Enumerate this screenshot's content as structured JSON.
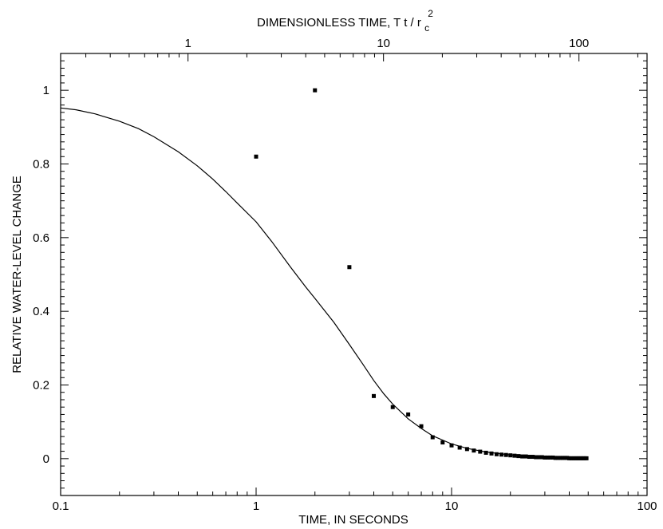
{
  "chart_data": {
    "type": "scatter",
    "xlabel": "TIME, IN SECONDS",
    "ylabel": "RELATIVE WATER-LEVEL CHANGE",
    "x2label": {
      "prefix": "DIMENSIONLESS TIME, T t / r",
      "sub": "c",
      "sup": "2"
    },
    "xscale": "log",
    "xlim": [
      0.1,
      100
    ],
    "ylim": [
      -0.1,
      1.1
    ],
    "x_ticks": [
      {
        "value": 0.1,
        "label": "0.1"
      },
      {
        "value": 1,
        "label": "1"
      },
      {
        "value": 10,
        "label": "10"
      },
      {
        "value": 100,
        "label": "100"
      }
    ],
    "y_ticks": [
      {
        "value": 0,
        "label": "0"
      },
      {
        "value": 0.2,
        "label": "0.2"
      },
      {
        "value": 0.4,
        "label": "0.4"
      },
      {
        "value": 0.6,
        "label": "0.6"
      },
      {
        "value": 0.8,
        "label": "0.8"
      },
      {
        "value": 1,
        "label": "1"
      }
    ],
    "x2_ticks": [
      {
        "value": 1,
        "label": "1"
      },
      {
        "value": 10,
        "label": "10"
      },
      {
        "value": 100,
        "label": "100"
      }
    ],
    "x2_per_x": 2.23,
    "grid": false,
    "series": [
      {
        "kind": "points",
        "marker": "square",
        "x": [
          1,
          2,
          3,
          4,
          5,
          6,
          7,
          8,
          9,
          10,
          11,
          12,
          13,
          14,
          15,
          16,
          17,
          18,
          19,
          20,
          21,
          22,
          23,
          24,
          25,
          26,
          27,
          28,
          29,
          30,
          31,
          32,
          33,
          34,
          35,
          36,
          37,
          38,
          39,
          40,
          41,
          42,
          43,
          44,
          45,
          46,
          47,
          48,
          49
        ],
        "y": [
          0.82,
          1.0,
          0.52,
          0.17,
          0.14,
          0.12,
          0.088,
          0.058,
          0.044,
          0.036,
          0.03,
          0.026,
          0.022,
          0.019,
          0.016,
          0.014,
          0.012,
          0.011,
          0.01,
          0.009,
          0.008,
          0.007,
          0.006,
          0.006,
          0.005,
          0.005,
          0.004,
          0.004,
          0.004,
          0.003,
          0.003,
          0.003,
          0.003,
          0.002,
          0.002,
          0.002,
          0.002,
          0.002,
          0.002,
          0.001,
          0.001,
          0.001,
          0.001,
          0.001,
          0.001,
          0.001,
          0.001,
          0.001,
          0.001
        ]
      },
      {
        "kind": "line",
        "x": [
          0.1,
          0.12,
          0.15,
          0.2,
          0.25,
          0.3,
          0.4,
          0.5,
          0.6,
          0.7,
          0.8,
          1.0,
          1.2,
          1.5,
          1.8,
          2.0,
          2.5,
          3.0,
          3.5,
          4.0,
          4.5,
          5.0,
          6.0,
          7.0,
          8.0,
          10.0,
          12.0,
          15.0,
          20.0,
          25.0,
          30.0,
          40.0,
          50.0
        ],
        "y": [
          0.952,
          0.947,
          0.936,
          0.916,
          0.896,
          0.874,
          0.833,
          0.795,
          0.759,
          0.725,
          0.694,
          0.643,
          0.59,
          0.52,
          0.465,
          0.435,
          0.37,
          0.31,
          0.258,
          0.212,
          0.176,
          0.148,
          0.108,
          0.082,
          0.062,
          0.04,
          0.028,
          0.018,
          0.01,
          0.007,
          0.005,
          0.003,
          0.002
        ]
      }
    ]
  }
}
